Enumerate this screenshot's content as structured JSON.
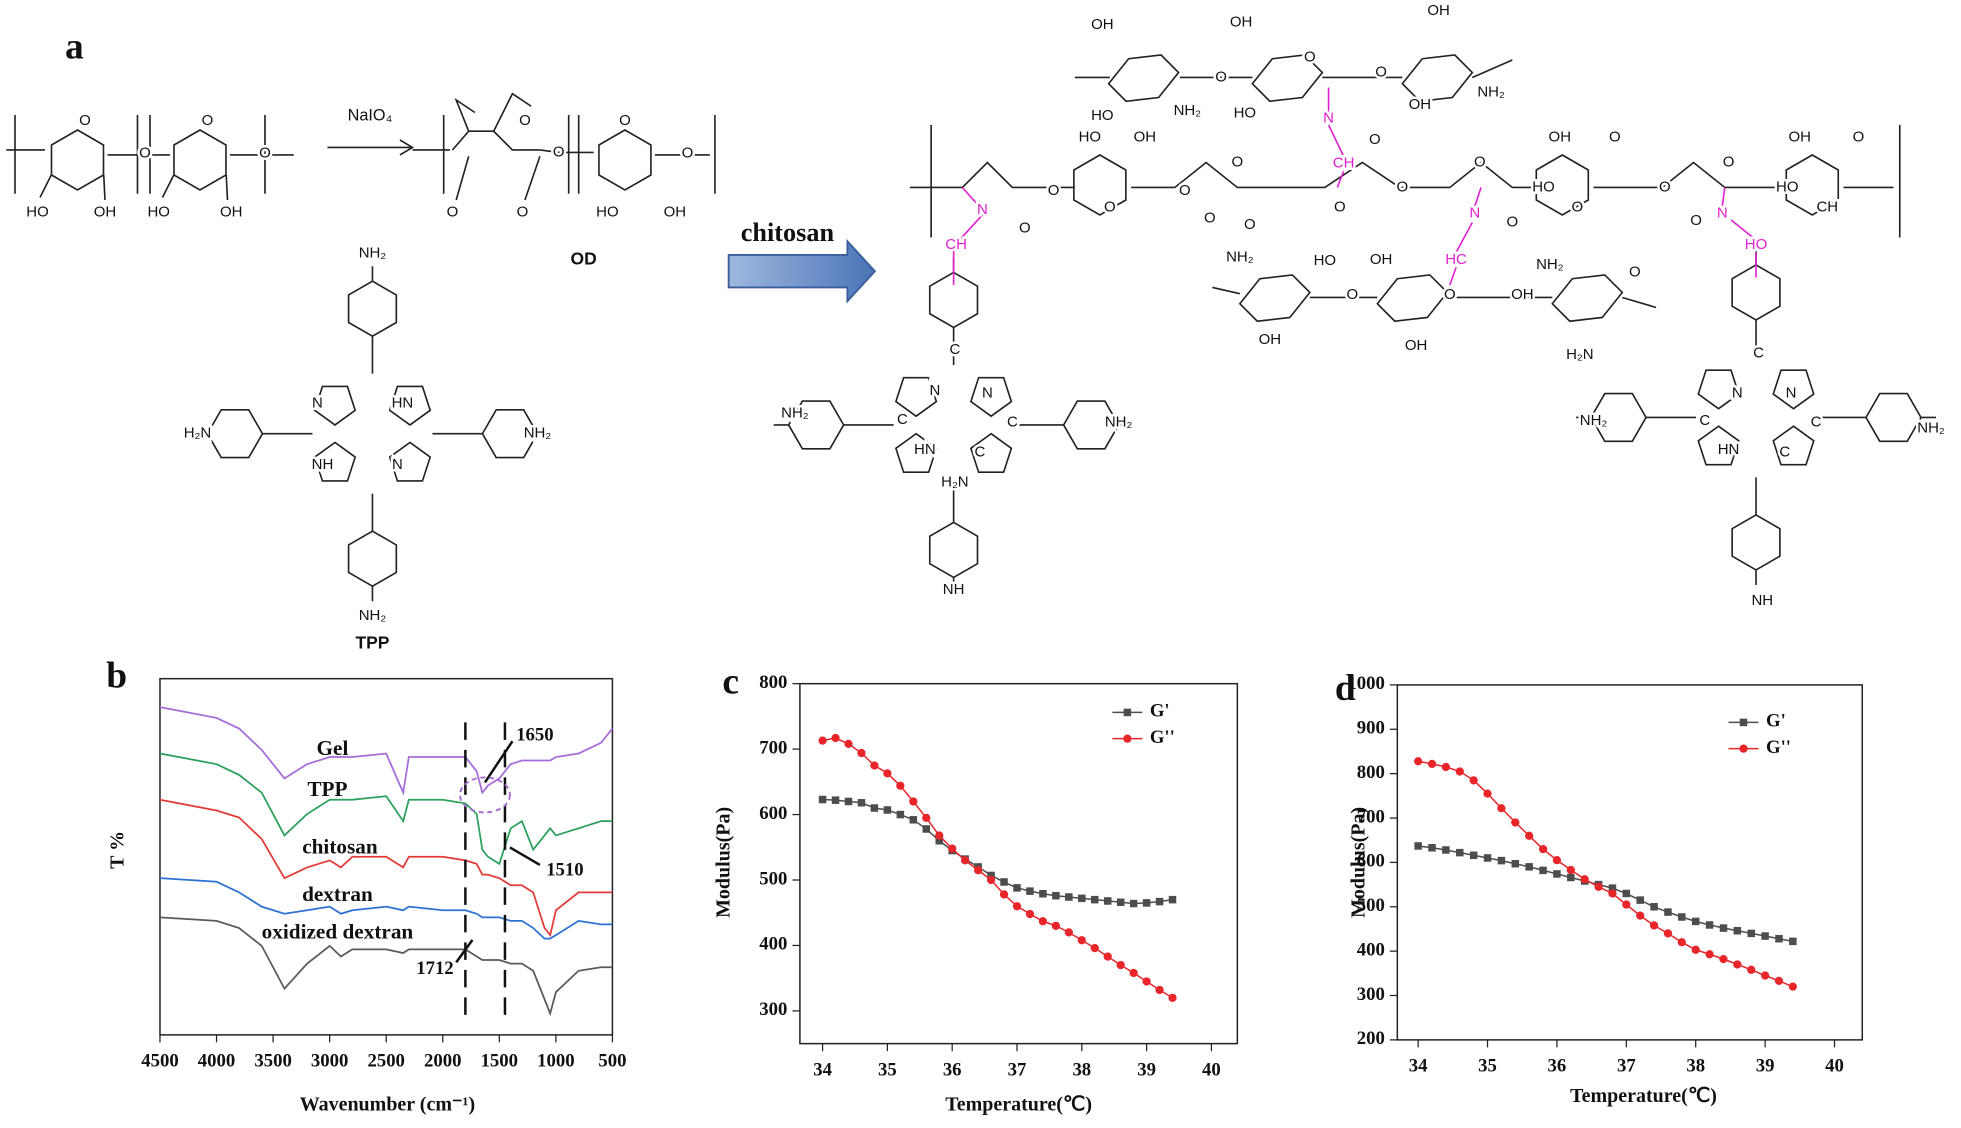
{
  "panel_a": {
    "label": "a",
    "reagent": "NaIO₄",
    "od_label": "OD",
    "tpp_label": "TPP",
    "arrow_label": "chitosan",
    "atoms": [
      "O",
      "O",
      "HO",
      "OH",
      "O",
      "O",
      "HO",
      "OH",
      "O",
      "O",
      "O",
      "O",
      "O",
      "O",
      "HO",
      "OH",
      "NH₂",
      "H₂N",
      "NH₂",
      "NH₂",
      "N",
      "HN",
      "NH",
      "N",
      "OH",
      "OH",
      "OH",
      "HO",
      "NH₂",
      "HO",
      "OH",
      "NH₂",
      "O",
      "O",
      "O",
      "N",
      "CH",
      "O",
      "O",
      "HO",
      "OH",
      "O",
      "O",
      "O",
      "O",
      "O",
      "O",
      "O",
      "O",
      "O",
      "O",
      "HO",
      "OH",
      "O",
      "O",
      "O",
      "O",
      "O",
      "HO",
      "OH",
      "O",
      "CH",
      "N",
      "CH",
      "N",
      "HC",
      "N",
      "HO",
      "NH₂",
      "HO",
      "OH",
      "NH₂",
      "O",
      "O",
      "O",
      "OH",
      "OH",
      "OH",
      "H₂N",
      "NH₂",
      "NH₂",
      "NH",
      "N",
      "N",
      "HN",
      "C",
      "C",
      "C",
      "C",
      "H₂N",
      "NH₂",
      "NH₂",
      "NH",
      "N",
      "N",
      "HN",
      "C",
      "C",
      "C",
      "C"
    ]
  },
  "panel_labels": [
    "b",
    "c",
    "d"
  ],
  "chart_data": [
    {
      "type": "line",
      "xlabel": "Wavenumber (cm⁻¹)",
      "ylabel": "T %",
      "x": [
        4500,
        4000,
        3800,
        3600,
        3400,
        3200,
        3000,
        2900,
        2800,
        2500,
        2350,
        2300,
        2000,
        1800,
        1700,
        1650,
        1600,
        1500,
        1400,
        1300,
        1200,
        1100,
        1050,
        1000,
        800,
        600,
        500
      ],
      "xlim": [
        4500,
        500
      ],
      "xticks": [
        4500,
        4000,
        3500,
        3000,
        2500,
        2000,
        1500,
        1000,
        500
      ],
      "ylim": [
        0,
        100
      ],
      "vlines": [
        1800,
        1450
      ],
      "annotations": [
        "1650",
        "1510",
        "1712"
      ],
      "series": [
        {
          "name": "Gel",
          "color": "#a66bd8",
          "values": [
            92,
            89,
            86,
            80,
            72,
            76,
            78,
            78,
            78,
            79,
            68,
            78,
            78,
            78,
            74,
            68,
            70,
            72,
            76,
            77,
            77,
            77,
            77,
            78,
            79,
            82,
            86
          ]
        },
        {
          "name": "TPP",
          "color": "#2aa05c",
          "values": [
            79,
            76,
            73,
            68,
            56,
            62,
            66,
            66,
            66,
            67,
            60,
            66,
            66,
            65,
            62,
            52,
            50,
            48,
            58,
            60,
            52,
            56,
            58,
            56,
            58,
            60,
            60
          ]
        },
        {
          "name": "chitosan",
          "color": "#e23a34",
          "values": [
            66,
            63,
            61,
            55,
            44,
            47,
            49,
            47,
            50,
            50,
            47,
            50,
            50,
            49,
            48,
            45,
            45,
            44,
            42,
            42,
            40,
            30,
            28,
            35,
            40,
            40,
            40
          ]
        },
        {
          "name": "dextran",
          "color": "#2d72d2",
          "values": [
            44,
            43,
            40,
            36,
            34,
            35,
            36,
            34,
            35,
            36,
            35,
            36,
            35,
            35,
            34,
            33,
            33,
            33,
            32,
            32,
            30,
            27,
            27,
            28,
            32,
            31,
            31
          ]
        },
        {
          "name": "oxidized dextran",
          "color": "#5a5a5a",
          "values": [
            33,
            32,
            30,
            25,
            13,
            20,
            25,
            22,
            24,
            24,
            23,
            24,
            24,
            24,
            22,
            21,
            21,
            21,
            20,
            20,
            18,
            10,
            6,
            12,
            18,
            19,
            19
          ]
        }
      ]
    },
    {
      "type": "line",
      "xlabel": "Temperature(℃)",
      "ylabel": "Modulus(Pa)",
      "legend": "upper right",
      "x": [
        34,
        34.2,
        34.4,
        34.6,
        34.8,
        35,
        35.2,
        35.4,
        35.6,
        35.8,
        36,
        36.2,
        36.4,
        36.6,
        36.8,
        37,
        37.2,
        37.4,
        37.6,
        37.8,
        38,
        38.2,
        38.4,
        38.6,
        38.8,
        39,
        39.2,
        39.4
      ],
      "xlim": [
        33.65,
        40.4
      ],
      "xticks": [
        34,
        35,
        36,
        37,
        38,
        39,
        40
      ],
      "ylim": [
        250,
        800
      ],
      "yticks": [
        300,
        400,
        500,
        600,
        700,
        800
      ],
      "series": [
        {
          "name": "G'",
          "color": "#4d4d4d",
          "marker": "square",
          "values": [
            623,
            622,
            620,
            618,
            610,
            607,
            600,
            592,
            578,
            560,
            545,
            532,
            520,
            507,
            497,
            488,
            483,
            479,
            476,
            474,
            472,
            470,
            468,
            466,
            464,
            465,
            467,
            470
          ]
        },
        {
          "name": "G''",
          "color": "#e8262a",
          "marker": "circle",
          "values": [
            713,
            717,
            708,
            694,
            675,
            663,
            644,
            620,
            595,
            568,
            548,
            530,
            515,
            500,
            478,
            460,
            448,
            437,
            430,
            420,
            408,
            396,
            383,
            370,
            358,
            345,
            332,
            320
          ]
        }
      ]
    },
    {
      "type": "line",
      "xlabel": "Temperature(℃)",
      "ylabel": "Modulus(Pa)",
      "legend": "upper right",
      "x": [
        34,
        34.2,
        34.4,
        34.6,
        34.8,
        35,
        35.2,
        35.4,
        35.6,
        35.8,
        36,
        36.2,
        36.4,
        36.6,
        36.8,
        37,
        37.2,
        37.4,
        37.6,
        37.8,
        38,
        38.2,
        38.4,
        38.6,
        38.8,
        39,
        39.2,
        39.4
      ],
      "xlim": [
        33.7,
        40.4
      ],
      "xticks": [
        34,
        35,
        36,
        37,
        38,
        39,
        40
      ],
      "ylim": [
        200,
        1000
      ],
      "yticks": [
        200,
        300,
        400,
        500,
        600,
        700,
        800,
        900,
        1000
      ],
      "series": [
        {
          "name": "G'",
          "color": "#4d4d4d",
          "marker": "square",
          "values": [
            637,
            633,
            628,
            622,
            616,
            610,
            604,
            597,
            590,
            582,
            574,
            566,
            558,
            550,
            542,
            530,
            515,
            500,
            488,
            477,
            467,
            459,
            452,
            446,
            440,
            434,
            428,
            422
          ]
        },
        {
          "name": "G''",
          "color": "#e8262a",
          "marker": "circle",
          "values": [
            828,
            822,
            815,
            805,
            785,
            755,
            722,
            690,
            660,
            630,
            605,
            583,
            562,
            545,
            530,
            505,
            480,
            458,
            440,
            420,
            403,
            393,
            382,
            370,
            358,
            345,
            333,
            320
          ]
        }
      ]
    }
  ]
}
